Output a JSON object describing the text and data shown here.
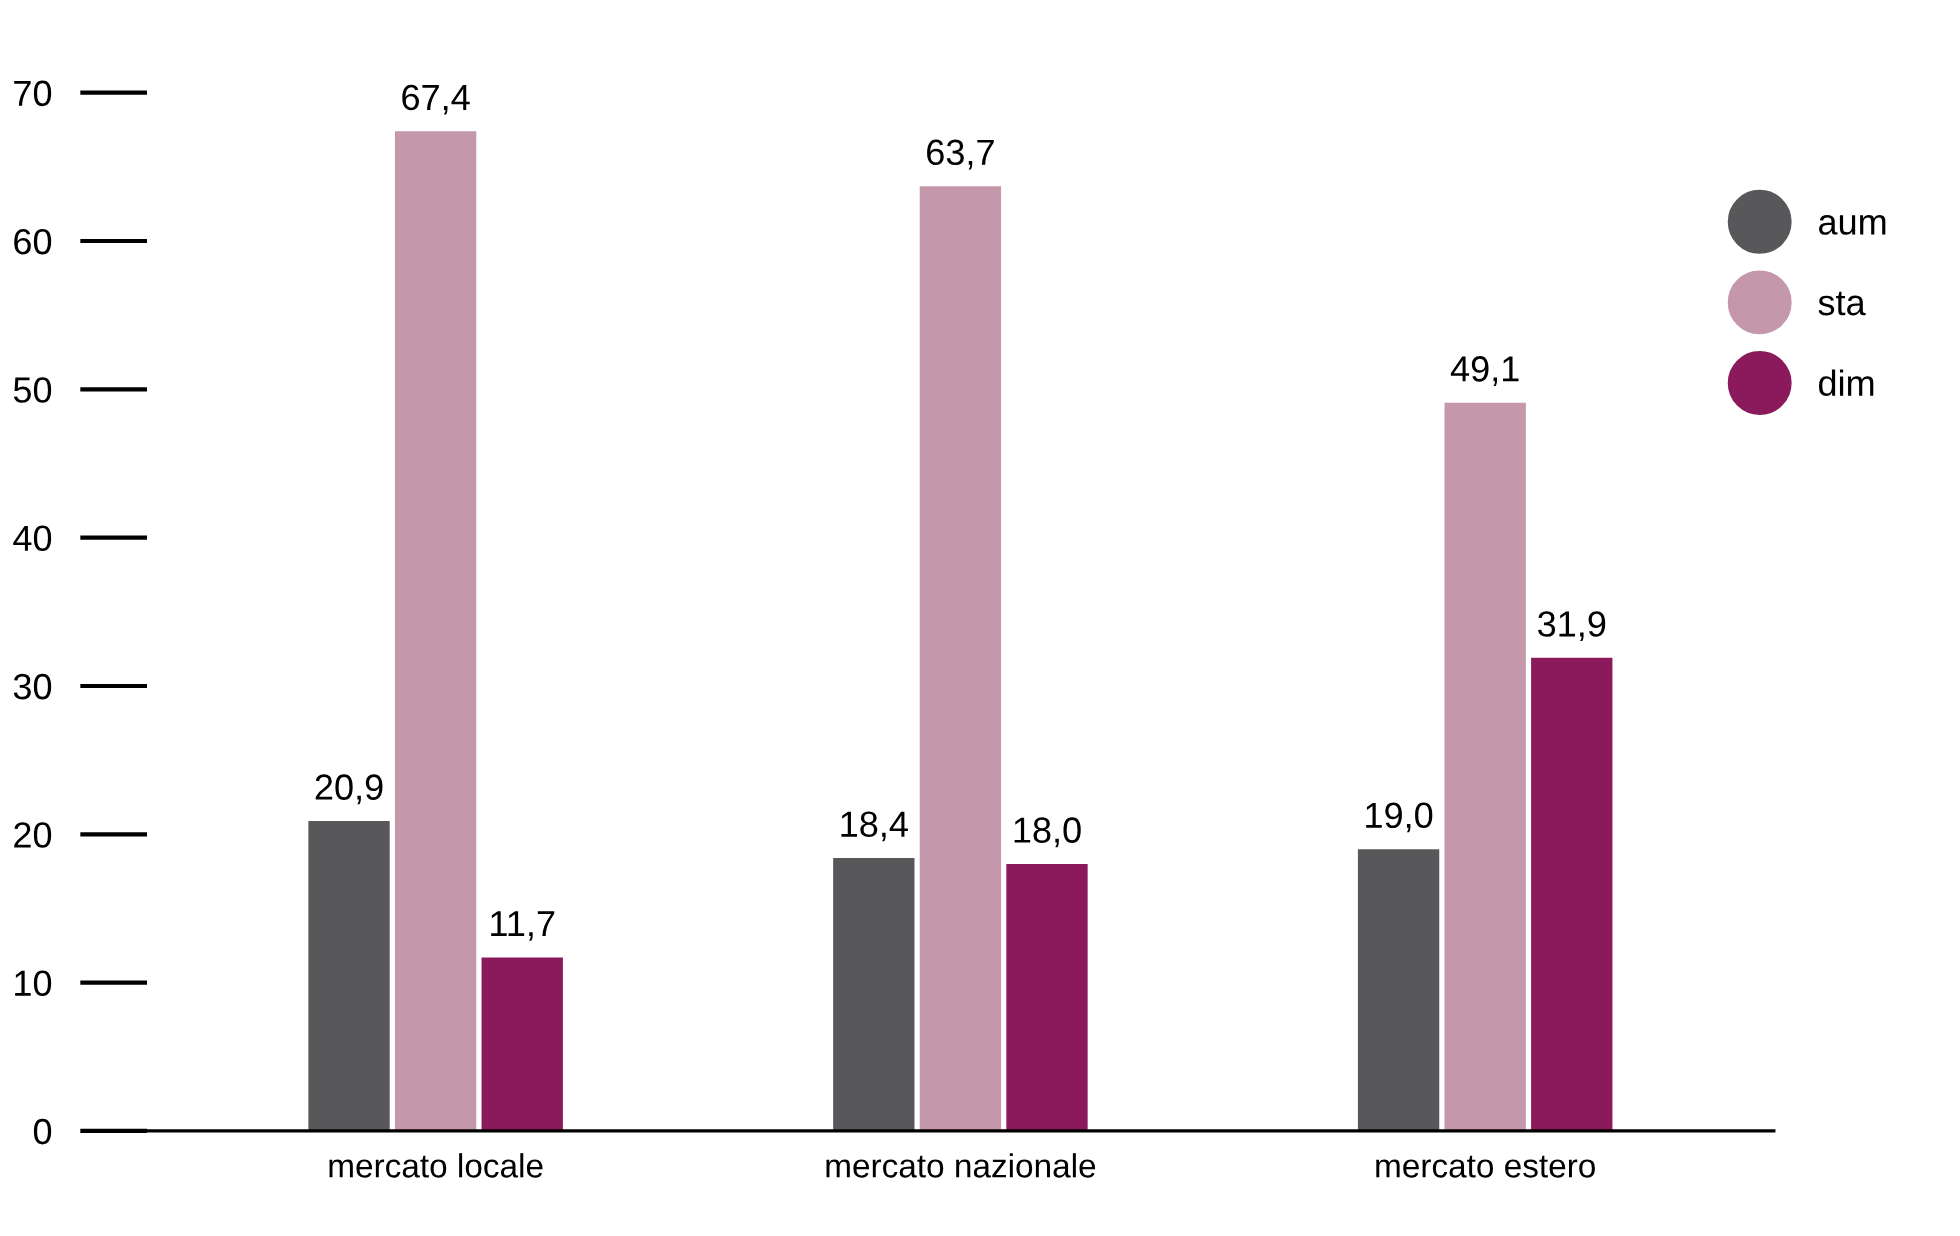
{
  "chart_data": {
    "type": "bar",
    "categories": [
      "mercato locale",
      "mercato nazionale",
      "mercato estero"
    ],
    "series": [
      {
        "name": "aum",
        "color": "#58585a",
        "values": [
          20.9,
          18.4,
          19.0
        ],
        "value_labels": [
          "20,9",
          "18,4",
          "19,0"
        ]
      },
      {
        "name": "sta",
        "color": "#c497ab",
        "values": [
          67.4,
          63.7,
          49.1
        ],
        "value_labels": [
          "67,4",
          "63,7",
          "49,1"
        ]
      },
      {
        "name": "dim",
        "color": "#8b1a5c",
        "values": [
          11.7,
          18.0,
          31.9
        ],
        "value_labels": [
          "11,7",
          "18,0",
          "31,9"
        ]
      }
    ],
    "ylim": [
      0,
      70
    ],
    "yticks": [
      0,
      10,
      20,
      30,
      40,
      50,
      60,
      70
    ],
    "grid": false,
    "legend": "top right"
  }
}
